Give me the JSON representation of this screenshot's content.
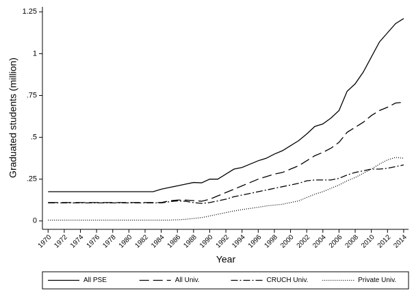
{
  "chart_data": {
    "type": "line",
    "x_label": "Year",
    "y_label": "Graduated students (million)",
    "x": [
      1970,
      1971,
      1972,
      1973,
      1974,
      1975,
      1976,
      1977,
      1978,
      1979,
      1980,
      1981,
      1982,
      1983,
      1984,
      1985,
      1986,
      1987,
      1988,
      1989,
      1990,
      1991,
      1992,
      1993,
      1994,
      1995,
      1996,
      1997,
      1998,
      1999,
      2000,
      2001,
      2002,
      2003,
      2004,
      2005,
      2006,
      2007,
      2008,
      2009,
      2010,
      2011,
      2012,
      2013,
      2014
    ],
    "xlim": [
      1969.3,
      2014.6
    ],
    "xticks": [
      1970,
      1972,
      1974,
      1976,
      1978,
      1980,
      1982,
      1984,
      1986,
      1988,
      1990,
      1992,
      1994,
      1996,
      1998,
      2000,
      2002,
      2004,
      2006,
      2008,
      2010,
      2012,
      2014
    ],
    "ylim": [
      -0.05,
      1.28
    ],
    "yticks": [
      0,
      {
        "value": 0.25,
        "label": ".25"
      },
      {
        "value": 0.5,
        "label": ".5"
      },
      {
        "value": 0.75,
        "label": ".75"
      },
      1,
      1.25
    ],
    "grid": false,
    "legend": "bottom",
    "series": [
      {
        "name": "All PSE",
        "color": "#000000",
        "dash": "none",
        "values": [
          0.175,
          0.175,
          0.175,
          0.175,
          0.175,
          0.175,
          0.175,
          0.175,
          0.175,
          0.175,
          0.175,
          0.175,
          0.175,
          0.175,
          0.19,
          0.2,
          0.21,
          0.22,
          0.23,
          0.228,
          0.25,
          0.25,
          0.28,
          0.31,
          0.32,
          0.34,
          0.36,
          0.375,
          0.4,
          0.42,
          0.45,
          0.48,
          0.52,
          0.565,
          0.58,
          0.615,
          0.66,
          0.775,
          0.82,
          0.89,
          0.98,
          1.07,
          1.125,
          1.18,
          1.21
        ]
      },
      {
        "name": "All Univ.",
        "color": "#000000",
        "dash": "14 6",
        "values": [
          0.11,
          0.11,
          0.11,
          0.11,
          0.11,
          0.11,
          0.11,
          0.11,
          0.11,
          0.11,
          0.11,
          0.11,
          0.11,
          0.11,
          0.11,
          0.12,
          0.125,
          0.125,
          0.122,
          0.118,
          0.13,
          0.15,
          0.17,
          0.19,
          0.21,
          0.23,
          0.25,
          0.265,
          0.28,
          0.29,
          0.31,
          0.33,
          0.36,
          0.39,
          0.41,
          0.435,
          0.47,
          0.53,
          0.56,
          0.59,
          0.63,
          0.66,
          0.68,
          0.705,
          0.71
        ]
      },
      {
        "name": "CRUCH Univ.",
        "color": "#000000",
        "dash": "10 3 2 3",
        "values": [
          0.108,
          0.108,
          0.108,
          0.108,
          0.108,
          0.108,
          0.108,
          0.108,
          0.108,
          0.108,
          0.108,
          0.108,
          0.108,
          0.108,
          0.108,
          0.115,
          0.12,
          0.118,
          0.11,
          0.105,
          0.11,
          0.12,
          0.13,
          0.145,
          0.155,
          0.165,
          0.175,
          0.185,
          0.195,
          0.205,
          0.215,
          0.225,
          0.24,
          0.245,
          0.245,
          0.245,
          0.255,
          0.275,
          0.29,
          0.3,
          0.31,
          0.31,
          0.315,
          0.325,
          0.335
        ]
      },
      {
        "name": "Private Univ.",
        "color": "#000000",
        "dash": "1 2",
        "values": [
          0.005,
          0.005,
          0.005,
          0.005,
          0.005,
          0.005,
          0.005,
          0.005,
          0.005,
          0.005,
          0.005,
          0.005,
          0.005,
          0.005,
          0.005,
          0.005,
          0.007,
          0.01,
          0.015,
          0.02,
          0.03,
          0.04,
          0.05,
          0.06,
          0.068,
          0.075,
          0.082,
          0.09,
          0.095,
          0.1,
          0.11,
          0.12,
          0.14,
          0.16,
          0.175,
          0.195,
          0.215,
          0.24,
          0.26,
          0.285,
          0.31,
          0.34,
          0.365,
          0.38,
          0.375
        ]
      }
    ]
  }
}
